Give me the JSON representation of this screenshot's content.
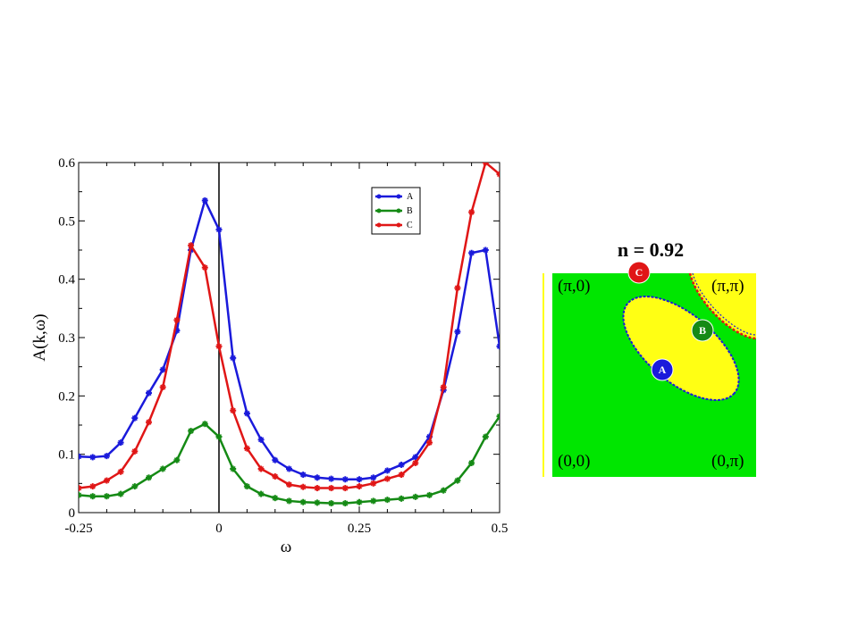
{
  "chart_data": [
    {
      "type": "line",
      "title": "",
      "xlabel": "ω",
      "ylabel": "A(k,ω)",
      "xlim": [
        -0.25,
        0.5
      ],
      "ylim": [
        0,
        0.6
      ],
      "x_ticks": [
        -0.25,
        0,
        0.25,
        0.5
      ],
      "x_tick_labels": [
        "-0.25",
        "0",
        "0.25",
        "0.5"
      ],
      "y_ticks": [
        0,
        0.1,
        0.2,
        0.3,
        0.4,
        0.5,
        0.6
      ],
      "y_tick_labels": [
        "0",
        "0.1",
        "0.2",
        "0.3",
        "0.4",
        "0.5",
        "0.6"
      ],
      "vertical_line_at": 0,
      "grid": false,
      "legend_position": "top-right",
      "series": [
        {
          "name": "A",
          "color": "#1a1adb",
          "x": [
            -0.25,
            -0.225,
            -0.2,
            -0.175,
            -0.15,
            -0.125,
            -0.1,
            -0.075,
            -0.05,
            -0.025,
            0.0,
            0.025,
            0.05,
            0.075,
            0.1,
            0.125,
            0.15,
            0.175,
            0.2,
            0.225,
            0.25,
            0.275,
            0.3,
            0.325,
            0.35,
            0.375,
            0.4,
            0.425,
            0.45,
            0.475,
            0.5
          ],
          "y": [
            0.096,
            0.095,
            0.097,
            0.12,
            0.162,
            0.205,
            0.245,
            0.312,
            0.45,
            0.535,
            0.485,
            0.265,
            0.17,
            0.125,
            0.09,
            0.075,
            0.065,
            0.06,
            0.058,
            0.057,
            0.057,
            0.06,
            0.072,
            0.082,
            0.095,
            0.13,
            0.21,
            0.31,
            0.445,
            0.45,
            0.285
          ]
        },
        {
          "name": "B",
          "color": "#158a15",
          "x": [
            -0.25,
            -0.225,
            -0.2,
            -0.175,
            -0.15,
            -0.125,
            -0.1,
            -0.075,
            -0.05,
            -0.025,
            0.0,
            0.025,
            0.05,
            0.075,
            0.1,
            0.125,
            0.15,
            0.175,
            0.2,
            0.225,
            0.25,
            0.275,
            0.3,
            0.325,
            0.35,
            0.375,
            0.4,
            0.425,
            0.45,
            0.475,
            0.5
          ],
          "y": [
            0.03,
            0.028,
            0.028,
            0.032,
            0.045,
            0.06,
            0.075,
            0.09,
            0.14,
            0.152,
            0.13,
            0.075,
            0.045,
            0.032,
            0.025,
            0.02,
            0.018,
            0.017,
            0.016,
            0.016,
            0.018,
            0.02,
            0.022,
            0.024,
            0.027,
            0.03,
            0.038,
            0.055,
            0.085,
            0.13,
            0.165
          ]
        },
        {
          "name": "C",
          "color": "#e01616",
          "x": [
            -0.25,
            -0.225,
            -0.2,
            -0.175,
            -0.15,
            -0.125,
            -0.1,
            -0.075,
            -0.05,
            -0.025,
            0.0,
            0.025,
            0.05,
            0.075,
            0.1,
            0.125,
            0.15,
            0.175,
            0.2,
            0.225,
            0.25,
            0.275,
            0.3,
            0.325,
            0.35,
            0.375,
            0.4,
            0.425,
            0.45,
            0.475,
            0.5
          ],
          "y": [
            0.042,
            0.045,
            0.055,
            0.07,
            0.105,
            0.155,
            0.215,
            0.33,
            0.458,
            0.42,
            0.285,
            0.175,
            0.11,
            0.075,
            0.062,
            0.048,
            0.044,
            0.042,
            0.042,
            0.042,
            0.045,
            0.05,
            0.058,
            0.065,
            0.085,
            0.12,
            0.215,
            0.385,
            0.515,
            0.6,
            0.58
          ]
        }
      ]
    },
    {
      "type": "heatmap",
      "title": "n = 0.92",
      "colors": {
        "background": "#00e600",
        "pocket": "#ffff14",
        "boundary_blue": "#1a1adb",
        "boundary_red": "#e01616",
        "left_edge": "#ffff14"
      },
      "corner_labels": {
        "top_left": "(π,0)",
        "top_right": "(π,π)",
        "bottom_left": "(0,0)",
        "bottom_right": "(0,π)"
      },
      "markers": [
        {
          "label": "C",
          "color": "#e01616"
        },
        {
          "label": "B",
          "color": "#158a15"
        },
        {
          "label": "A",
          "color": "#1a1adb"
        }
      ]
    }
  ]
}
